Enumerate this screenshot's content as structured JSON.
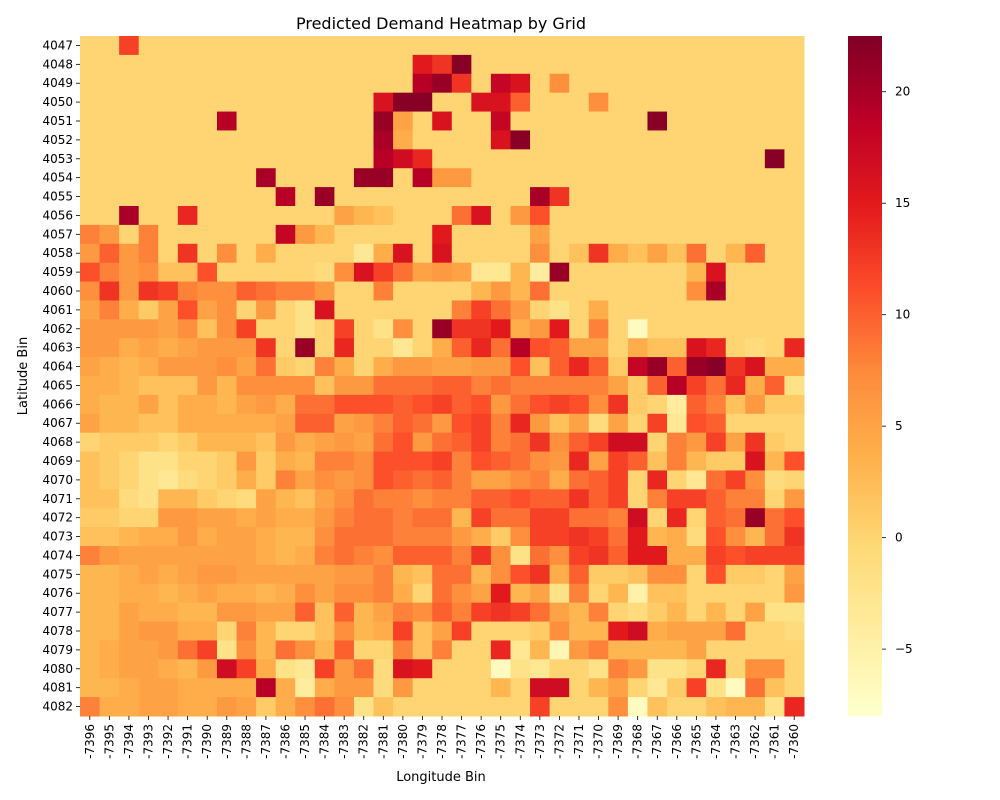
{
  "chart_data": {
    "type": "heatmap",
    "title": "Predicted Demand Heatmap by Grid",
    "xlabel": "Longitude Bin",
    "ylabel": "Latitude Bin",
    "x_categories": [
      "-7396",
      "-7395",
      "-7394",
      "-7393",
      "-7392",
      "-7391",
      "-7390",
      "-7389",
      "-7388",
      "-7387",
      "-7386",
      "-7385",
      "-7384",
      "-7383",
      "-7382",
      "-7381",
      "-7380",
      "-7379",
      "-7378",
      "-7377",
      "-7376",
      "-7375",
      "-7374",
      "-7373",
      "-7372",
      "-7371",
      "-7370",
      "-7369",
      "-7368",
      "-7367",
      "-7366",
      "-7365",
      "-7364",
      "-7363",
      "-7362",
      "-7361",
      "-7360"
    ],
    "y_categories": [
      "4047",
      "4048",
      "4049",
      "4050",
      "4051",
      "4052",
      "4053",
      "4054",
      "4055",
      "4056",
      "4057",
      "4058",
      "4059",
      "4060",
      "4061",
      "4062",
      "4063",
      "4064",
      "4065",
      "4066",
      "4067",
      "4068",
      "4069",
      "4070",
      "4071",
      "4072",
      "4073",
      "4074",
      "4075",
      "4076",
      "4077",
      "4078",
      "4079",
      "4080",
      "4081",
      "4082"
    ],
    "colorbar": {
      "min": -8,
      "max": 22.5,
      "ticks": [
        -5,
        0,
        5,
        10,
        15,
        20
      ],
      "colormap": "YlOrRd"
    },
    "background_value": 0,
    "values": [
      [
        0,
        0,
        12,
        0,
        0,
        0,
        0,
        0,
        0,
        0,
        0,
        0,
        0,
        0,
        0,
        0,
        0,
        0,
        0,
        0,
        0,
        0,
        0,
        0,
        0,
        0,
        0,
        0,
        0,
        0,
        0,
        0,
        0,
        0,
        0,
        0,
        0
      ],
      [
        0,
        0,
        0,
        0,
        0,
        0,
        0,
        0,
        0,
        0,
        0,
        0,
        0,
        0,
        0,
        0,
        0,
        15,
        13,
        22,
        0,
        0,
        0,
        0,
        0,
        0,
        0,
        0,
        0,
        0,
        0,
        0,
        0,
        0,
        0,
        0,
        0
      ],
      [
        0,
        0,
        0,
        0,
        0,
        0,
        0,
        0,
        0,
        0,
        0,
        0,
        0,
        0,
        0,
        0,
        0,
        19,
        21,
        13,
        0,
        18,
        16,
        0,
        7,
        0,
        0,
        0,
        0,
        0,
        0,
        0,
        0,
        0,
        0,
        0,
        0
      ],
      [
        0,
        0,
        0,
        0,
        0,
        0,
        0,
        0,
        0,
        0,
        0,
        0,
        0,
        0,
        0,
        16,
        22,
        22,
        0,
        0,
        16,
        16,
        10,
        0,
        0,
        0,
        7,
        0,
        0,
        0,
        0,
        0,
        0,
        0,
        0,
        0,
        0
      ],
      [
        0,
        0,
        0,
        0,
        0,
        0,
        0,
        19,
        0,
        0,
        0,
        0,
        0,
        0,
        0,
        21,
        5,
        0,
        16,
        0,
        0,
        18,
        0,
        0,
        0,
        0,
        0,
        0,
        0,
        22,
        0,
        0,
        0,
        0,
        0,
        0,
        0
      ],
      [
        0,
        0,
        0,
        0,
        0,
        0,
        0,
        0,
        0,
        0,
        0,
        0,
        0,
        0,
        0,
        20,
        4,
        0,
        0,
        0,
        0,
        16,
        22,
        0,
        0,
        0,
        0,
        0,
        0,
        0,
        0,
        0,
        0,
        0,
        0,
        0,
        0
      ],
      [
        0,
        0,
        0,
        0,
        0,
        0,
        0,
        0,
        0,
        0,
        0,
        0,
        0,
        0,
        0,
        19,
        17,
        14,
        0,
        0,
        0,
        0,
        0,
        0,
        0,
        0,
        0,
        0,
        0,
        0,
        0,
        0,
        0,
        0,
        0,
        22,
        0
      ],
      [
        0,
        0,
        0,
        0,
        0,
        0,
        0,
        0,
        0,
        20,
        0,
        0,
        0,
        0,
        21,
        21,
        0,
        19,
        6,
        6,
        0,
        0,
        0,
        0,
        0,
        0,
        0,
        0,
        0,
        0,
        0,
        0,
        0,
        0,
        0,
        0,
        0
      ],
      [
        0,
        0,
        0,
        0,
        0,
        0,
        0,
        0,
        0,
        0,
        19,
        0,
        21,
        0,
        0,
        0,
        0,
        0,
        0,
        0,
        0,
        0,
        0,
        20,
        13,
        0,
        0,
        0,
        0,
        0,
        0,
        0,
        0,
        0,
        0,
        0,
        0
      ],
      [
        0,
        0,
        20,
        0,
        0,
        14,
        0,
        0,
        0,
        0,
        0,
        0,
        0,
        5,
        3,
        2,
        0,
        0,
        0,
        9,
        16,
        0,
        6,
        11,
        0,
        0,
        0,
        0,
        0,
        0,
        0,
        0,
        0,
        0,
        0,
        0,
        0
      ],
      [
        8,
        6,
        0,
        8,
        0,
        0,
        0,
        0,
        0,
        0,
        18,
        6,
        3,
        0,
        0,
        0,
        0,
        0,
        15,
        0,
        0,
        0,
        0,
        5,
        0,
        0,
        0,
        0,
        0,
        0,
        0,
        0,
        0,
        0,
        0,
        0,
        0
      ],
      [
        6,
        10,
        6,
        8,
        0,
        13,
        0,
        7,
        0,
        4,
        0,
        0,
        0,
        0,
        -3,
        4,
        16,
        0,
        16,
        0,
        0,
        0,
        0,
        7,
        0,
        2,
        13,
        4,
        2,
        5,
        2,
        9,
        0,
        3,
        10,
        0,
        0
      ],
      [
        11,
        8,
        6,
        7,
        2,
        2,
        11,
        0,
        0,
        0,
        0,
        0,
        -1,
        7,
        16,
        12,
        9,
        5,
        6,
        5,
        -3,
        -3,
        3,
        -4,
        21,
        0,
        0,
        0,
        0,
        0,
        0,
        3,
        16,
        0,
        0,
        0,
        0
      ],
      [
        7,
        13,
        6,
        13,
        12,
        8,
        7,
        7,
        10,
        9,
        8,
        8,
        6,
        0,
        0,
        8,
        0,
        0,
        0,
        0,
        3,
        6,
        3,
        9,
        0,
        0,
        0,
        0,
        0,
        0,
        0,
        7,
        20,
        0,
        0,
        0,
        0
      ],
      [
        5,
        8,
        4,
        1,
        5,
        11,
        5,
        7,
        0,
        6,
        0,
        -2,
        16,
        0,
        0,
        0,
        0,
        0,
        0,
        8,
        12,
        9,
        6,
        0,
        -2,
        0,
        4,
        0,
        0,
        0,
        0,
        0,
        0,
        0,
        0,
        0,
        0
      ],
      [
        6,
        6,
        6,
        6,
        5,
        7,
        2,
        7,
        12,
        0,
        0,
        -2,
        0,
        12,
        0,
        -2,
        7,
        0,
        21,
        13,
        13,
        15,
        4,
        6,
        15,
        0,
        8,
        0,
        -7,
        0,
        0,
        0,
        0,
        0,
        0,
        0,
        0
      ],
      [
        6,
        6,
        4,
        5,
        4,
        5,
        6,
        6,
        6,
        13,
        0,
        21,
        0,
        14,
        0,
        0,
        -3,
        0,
        4,
        10,
        14,
        9,
        19,
        11,
        10,
        5,
        5,
        0,
        4,
        2,
        2,
        16,
        14,
        0,
        -1,
        0,
        14
      ],
      [
        5,
        4,
        3,
        4,
        6,
        6,
        6,
        7,
        5,
        9,
        1,
        0,
        8,
        4,
        0,
        4,
        6,
        6,
        5,
        5,
        6,
        6,
        11,
        2,
        10,
        14,
        10,
        1,
        18,
        21,
        10,
        21,
        22,
        13,
        16,
        4,
        4
      ],
      [
        4,
        4,
        3,
        2,
        2,
        2,
        6,
        3,
        7,
        7,
        7,
        7,
        2,
        6,
        6,
        9,
        9,
        9,
        10,
        10,
        8,
        9,
        8,
        8,
        8,
        8,
        8,
        5,
        1,
        10,
        19,
        12,
        9,
        14,
        4,
        10,
        -2
      ],
      [
        4,
        3,
        3,
        5,
        2,
        4,
        4,
        3,
        5,
        6,
        4,
        9,
        9,
        11,
        11,
        11,
        10,
        11,
        12,
        10,
        11,
        6,
        9,
        11,
        12,
        11,
        7,
        13,
        1,
        0,
        -4,
        10,
        8,
        2,
        6,
        1,
        1
      ],
      [
        5,
        3,
        3,
        2,
        2,
        4,
        4,
        4,
        4,
        4,
        5,
        10,
        10,
        5,
        6,
        8,
        10,
        9,
        6,
        11,
        12,
        8,
        14,
        6,
        2,
        5,
        -1,
        5,
        0,
        12,
        -3,
        11,
        10,
        0,
        0,
        0,
        0
      ],
      [
        0,
        1,
        1,
        1,
        0,
        1,
        3,
        3,
        3,
        2,
        6,
        4,
        5,
        6,
        5,
        9,
        11,
        6,
        9,
        10,
        12,
        8,
        9,
        13,
        7,
        10,
        12,
        17,
        17,
        0,
        8,
        6,
        12,
        5,
        13,
        1,
        0
      ],
      [
        2,
        1,
        0,
        -2,
        -2,
        0,
        0,
        1,
        6,
        1,
        4,
        3,
        8,
        8,
        7,
        11,
        11,
        11,
        12,
        8,
        11,
        10,
        9,
        7,
        6,
        14,
        5,
        12,
        10,
        2,
        8,
        3,
        1,
        1,
        16,
        3,
        11
      ],
      [
        2,
        1,
        0,
        -2,
        -3,
        -1,
        0,
        1,
        4,
        1,
        8,
        5,
        7,
        6,
        7,
        11,
        10,
        9,
        10,
        8,
        5,
        5,
        7,
        8,
        4,
        9,
        10,
        12,
        0,
        14,
        0,
        -3,
        9,
        12,
        7,
        -1,
        0
      ],
      [
        2,
        2,
        -1,
        -2,
        3,
        3,
        1,
        0,
        -1,
        5,
        3,
        2,
        5,
        7,
        9,
        8,
        8,
        7,
        8,
        8,
        10,
        10,
        11,
        10,
        10,
        13,
        10,
        12,
        0,
        8,
        12,
        12,
        10,
        8,
        8,
        0,
        6
      ],
      [
        1,
        1,
        0,
        0,
        6,
        6,
        5,
        5,
        4,
        5,
        4,
        4,
        6,
        8,
        9,
        9,
        8,
        9,
        9,
        3,
        12,
        9,
        9,
        12,
        12,
        9,
        9,
        8,
        17,
        0,
        14,
        0,
        10,
        9,
        21,
        9,
        11
      ],
      [
        2,
        2,
        3,
        4,
        4,
        6,
        4,
        5,
        5,
        4,
        3,
        3,
        7,
        9,
        9,
        9,
        8,
        8,
        8,
        6,
        4,
        1,
        7,
        12,
        12,
        13,
        12,
        9,
        15,
        3,
        4,
        -1,
        11,
        7,
        3,
        9,
        13
      ],
      [
        8,
        6,
        5,
        5,
        5,
        5,
        5,
        5,
        5,
        4,
        3,
        4,
        8,
        9,
        8,
        7,
        10,
        10,
        10,
        8,
        13,
        7,
        -2,
        9,
        7,
        12,
        13,
        10,
        15,
        15,
        4,
        4,
        12,
        11,
        12,
        12,
        12
      ],
      [
        3,
        3,
        4,
        5,
        4,
        5,
        6,
        6,
        5,
        5,
        5,
        5,
        5,
        6,
        6,
        8,
        3,
        2,
        9,
        9,
        3,
        7,
        11,
        13,
        4,
        10,
        1,
        1,
        2,
        7,
        7,
        0,
        11,
        1,
        1,
        0,
        5
      ],
      [
        3,
        3,
        4,
        4,
        3,
        4,
        5,
        4,
        4,
        3,
        4,
        7,
        5,
        7,
        7,
        8,
        4,
        0,
        9,
        7,
        5,
        15,
        3,
        5,
        -2,
        8,
        0,
        3,
        -5,
        2,
        2,
        0,
        0,
        0,
        0,
        0,
        6
      ],
      [
        3,
        3,
        5,
        4,
        4,
        3,
        3,
        6,
        6,
        5,
        5,
        10,
        2,
        10,
        3,
        5,
        8,
        7,
        10,
        8,
        12,
        13,
        12,
        9,
        5,
        3,
        8,
        0,
        -1,
        1,
        3,
        0,
        3,
        0,
        5,
        -2,
        -2
      ],
      [
        3,
        3,
        5,
        6,
        6,
        4,
        4,
        0,
        8,
        3,
        0,
        0,
        2,
        7,
        3,
        4,
        12,
        2,
        5,
        12,
        0,
        0,
        0,
        1,
        7,
        3,
        3,
        15,
        17,
        4,
        5,
        5,
        5,
        9,
        0,
        0,
        -1
      ],
      [
        3,
        4,
        5,
        5,
        6,
        9,
        12,
        -2,
        7,
        3,
        9,
        7,
        3,
        10,
        0,
        0,
        8,
        2,
        8,
        0,
        0,
        14,
        -3,
        3,
        -6,
        6,
        8,
        3,
        3,
        3,
        3,
        5,
        0,
        0,
        0,
        0,
        0
      ],
      [
        3,
        4,
        5,
        5,
        4,
        3,
        6,
        17,
        12,
        4,
        -2,
        -3,
        12,
        6,
        9,
        -1,
        16,
        15,
        0,
        0,
        0,
        -7,
        -2,
        -3,
        0,
        0,
        -2,
        8,
        6,
        -2,
        -2,
        0,
        14,
        0,
        7,
        7,
        0
      ],
      [
        3,
        3,
        4,
        5,
        5,
        4,
        4,
        4,
        4,
        19,
        4,
        -4,
        4,
        6,
        6,
        -1,
        6,
        0,
        0,
        0,
        0,
        3,
        0,
        17,
        17,
        0,
        3,
        5,
        0,
        -3,
        1,
        12,
        -2,
        -7,
        9,
        2,
        0
      ],
      [
        8,
        4,
        4,
        5,
        5,
        4,
        4,
        6,
        5,
        1,
        4,
        7,
        9,
        7,
        -2,
        2,
        0,
        0,
        0,
        0,
        0,
        0,
        0,
        12,
        0,
        0,
        0,
        7,
        -7,
        2,
        0,
        0,
        2,
        3,
        3,
        -2,
        14
      ]
    ]
  }
}
